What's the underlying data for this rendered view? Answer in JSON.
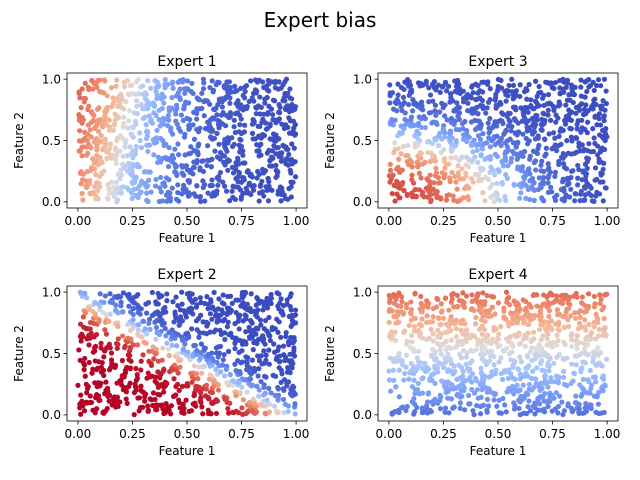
{
  "figure": {
    "suptitle": "Expert bias"
  },
  "chart_data": [
    {
      "type": "scatter",
      "title": "Expert 1",
      "xlabel": "Feature 1",
      "ylabel": "Feature 2",
      "xlim": [
        -0.05,
        1.05
      ],
      "ylim": [
        -0.05,
        1.05
      ],
      "xticks": [
        "0.00",
        "0.25",
        "0.50",
        "0.75",
        "1.00"
      ],
      "yticks": [
        "0.0",
        "0.5",
        "1.0"
      ],
      "colormap": "coolwarm",
      "color_rule": "warm near the left edge (top-left), cool elsewhere",
      "points": 1000
    },
    {
      "type": "scatter",
      "title": "Expert 3",
      "xlabel": "Feature 1",
      "ylabel": "Feature 2",
      "xlim": [
        -0.05,
        1.05
      ],
      "ylim": [
        -0.05,
        1.05
      ],
      "xticks": [
        "0.00",
        "0.25",
        "0.50",
        "0.75",
        "1.00"
      ],
      "yticks": [
        "0.0",
        "0.5",
        "1.0"
      ],
      "colormap": "coolwarm",
      "color_rule": "warm in the bottom-left corner, cool elsewhere",
      "points": 1000
    },
    {
      "type": "scatter",
      "title": "Expert 2",
      "xlabel": "Feature 1",
      "ylabel": "Feature 2",
      "xlim": [
        -0.05,
        1.05
      ],
      "ylim": [
        -0.05,
        1.05
      ],
      "xticks": [
        "0.00",
        "0.25",
        "0.50",
        "0.75",
        "1.00"
      ],
      "yticks": [
        "0.0",
        "0.5",
        "1.0"
      ],
      "colormap": "coolwarm",
      "color_rule": "red below the diagonal x + y = 1, blue above",
      "points": 1000
    },
    {
      "type": "scatter",
      "title": "Expert 4",
      "xlabel": "Feature 1",
      "ylabel": "Feature 2",
      "xlim": [
        -0.05,
        1.05
      ],
      "ylim": [
        -0.05,
        1.05
      ],
      "xticks": [
        "0.00",
        "0.25",
        "0.50",
        "0.75",
        "1.00"
      ],
      "yticks": [
        "0.0",
        "0.5",
        "1.0"
      ],
      "colormap": "coolwarm",
      "color_rule": "color rises with Feature 2: blue at bottom, red at top",
      "points": 1000
    }
  ]
}
